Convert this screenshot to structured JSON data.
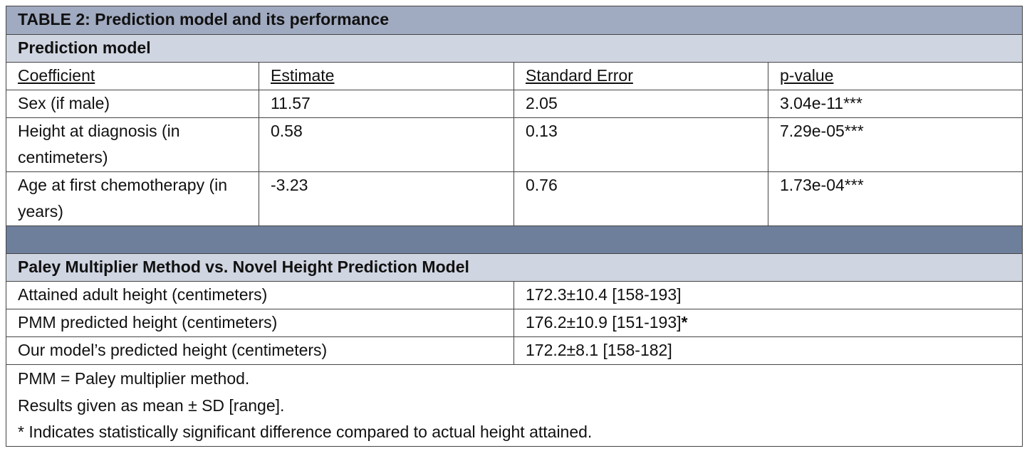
{
  "title": "TABLE 2: Prediction model and its performance",
  "model": {
    "heading": "Prediction model",
    "columns": [
      "Coefficient",
      "Estimate",
      "Standard Error",
      "p-value"
    ],
    "rows": [
      [
        "Sex (if male)",
        "11.57",
        "2.05",
        "3.04e-11***"
      ],
      [
        "Height at diagnosis (in centimeters)",
        "0.58",
        "0.13",
        "7.29e-05***"
      ],
      [
        "Age at first chemotherapy (in years)",
        "-3.23",
        "0.76",
        "1.73e-04***"
      ]
    ]
  },
  "comparison": {
    "heading": "Paley Multiplier Method vs. Novel Height Prediction Model",
    "rows": [
      {
        "label": "Attained adult height (centimeters)",
        "value": "172.3±10.4 [158-193]"
      },
      {
        "label": "PMM predicted height (centimeters)",
        "value": "176.2±10.9 [151-193]",
        "flag": "*"
      },
      {
        "label": "Our model’s predicted height (centimeters)",
        "value": "172.2±8.1 [158-182]"
      }
    ]
  },
  "notes": [
    "PMM = Paley multiplier method.",
    "Results given as mean ± SD [range].",
    "* Indicates statistically significant difference compared to actual height attained."
  ]
}
